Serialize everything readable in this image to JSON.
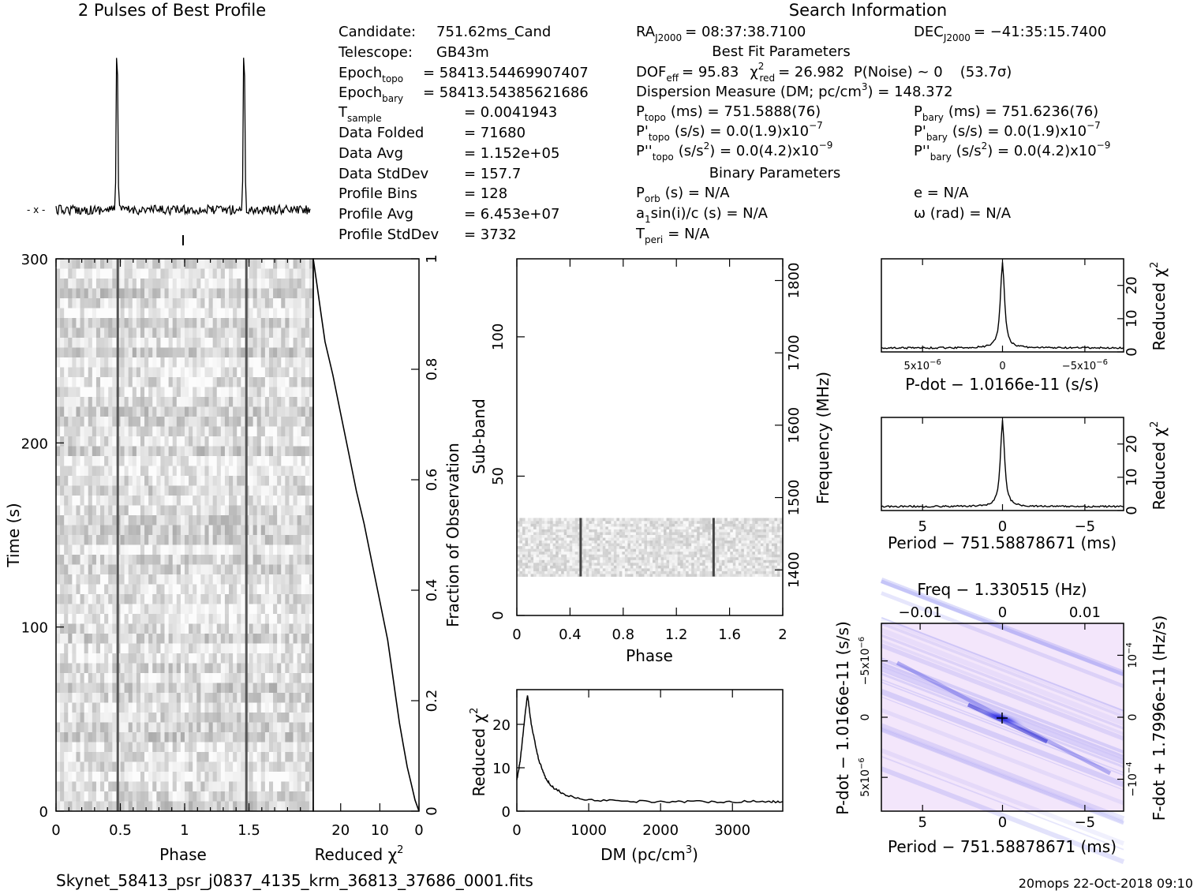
{
  "titles": {
    "profile": "2 Pulses of Best Profile",
    "search": "Search Information"
  },
  "info_left": [
    {
      "label": "Candidate:",
      "value": "751.62ms_Cand"
    },
    {
      "label": "Telescope:",
      "value": "GB43m"
    },
    {
      "label": "Epoch",
      "sub": "topo",
      "value": "= 58413.54469907407"
    },
    {
      "label": "Epoch",
      "sub": "bary",
      "value": "= 58413.54385621686"
    },
    {
      "label": "T",
      "sub": "sample",
      "value": "= 0.0041943"
    },
    {
      "label": "Data Folded",
      "value": "= 71680"
    },
    {
      "label": "Data Avg",
      "value": "= 1.152e+05"
    },
    {
      "label": "Data StdDev",
      "value": "= 157.7"
    },
    {
      "label": "Profile Bins",
      "value": "= 128"
    },
    {
      "label": "Profile Avg",
      "value": "= 6.453e+07"
    },
    {
      "label": "Profile StdDev",
      "value": "= 3732"
    }
  ],
  "info_mid": {
    "ra": "RA",
    "ra_sub": "J2000",
    "ra_val": "= 08:37:38.7100",
    "dec": "DEC",
    "dec_sub": "J2000",
    "dec_val": "= −41:35:15.7400",
    "best_fit": "Best Fit Parameters",
    "dof": "DOF",
    "dof_sub": "eff",
    "dof_val": "= 95.83",
    "chi": "χ",
    "chi_sup": "2",
    "chi_sub": "red",
    "chi_val": "= 26.982",
    "pnoise": "P(Noise) ~ 0",
    "sigma": "(53.7σ)",
    "dm_line": "Dispersion Measure (DM; pc/cm",
    "dm_sup": "3",
    "dm_val": ") = 148.372",
    "ptopo": "P",
    "ptopo_sub": "topo",
    "ptopo_val": "(ms) =  751.5888(76)",
    "pbary": "P",
    "pbary_sub": "bary",
    "pbary_val": "(ms) =  751.6236(76)",
    "pdtopo": "P'",
    "pdtopo_sub": "topo",
    "pdtopo_val": "(s/s) = 0.0(1.9)x10",
    "pdtopo_exp": "−7",
    "pdbary": "P'",
    "pdbary_sub": "bary",
    "pdbary_val": "(s/s) = 0.0(1.9)x10",
    "pdbary_exp": "−7",
    "pddtopo": "P''",
    "pddtopo_sub": "topo",
    "pddtopo_val": "(s/s",
    "pddtopo_val2": ") = 0.0(4.2)x10",
    "pddtopo_exp": "−9",
    "pddbary": "P''",
    "pddbary_sub": "bary",
    "pddbary_val": "(s/s",
    "pddbary_val2": ") = 0.0(4.2)x10",
    "pddbary_exp": "−9",
    "binary": "Binary Parameters",
    "porb": "P",
    "porb_sub": "orb",
    "porb_val": "(s) = N/A",
    "ecc": "e = N/A",
    "a1": "a",
    "a1_sub": "1",
    "a1_val": "sin(i)/c (s) = N/A",
    "omega": "ω (rad) = N/A",
    "tperi": "T",
    "tperi_sub": "peri",
    "tperi_val": "= N/A"
  },
  "footer": {
    "filename": "Skynet_58413_psr_j0837_4135_krm_36813_37686_0001.fits",
    "stamp": "20mops 22-Oct-2018 09:10"
  },
  "chart_data": [
    {
      "type": "line",
      "title": "2 Pulses of Best Profile",
      "xlim": [
        0,
        2
      ],
      "peaks_at_phase": [
        0.48,
        1.48
      ]
    },
    {
      "type": "heatmap",
      "name": "time-phase",
      "xlabel": "Phase",
      "ylabel": "Time (s)",
      "xticks": [
        "0",
        "0.5",
        "1",
        "1.5"
      ],
      "yticks": [
        "0",
        "100",
        "200",
        "300"
      ],
      "xlim": [
        0,
        2
      ],
      "ylim": [
        0,
        300
      ],
      "pulse_phase": [
        0.48,
        1.48
      ]
    },
    {
      "type": "line",
      "name": "reduced-chi2-vs-fraction",
      "xlabel": "Reduced χ",
      "xlabel_sup": "2",
      "ylabel": "Fraction of Observation",
      "xticks": [
        "20",
        "10",
        "0"
      ],
      "yticks": [
        "0",
        "0.2",
        "0.4",
        "0.6",
        "0.8",
        "1"
      ],
      "xlim": [
        27,
        0
      ],
      "ylim": [
        0,
        1
      ],
      "x": [
        0,
        1,
        2,
        3,
        4,
        5,
        6,
        7,
        8,
        10,
        12,
        14,
        16,
        18,
        20,
        22,
        24,
        25,
        26,
        27
      ],
      "y": [
        0,
        0.02,
        0.05,
        0.08,
        0.12,
        0.16,
        0.21,
        0.26,
        0.31,
        0.38,
        0.45,
        0.52,
        0.58,
        0.65,
        0.72,
        0.79,
        0.85,
        0.9,
        0.95,
        1.0
      ]
    },
    {
      "type": "heatmap",
      "name": "subband-phase",
      "xlabel": "Phase",
      "ylabel": "Sub-band",
      "ylabel2": "Frequency (MHz)",
      "xticks": [
        "0",
        "0.4",
        "0.8",
        "1.2",
        "1.6",
        "2"
      ],
      "yticks": [
        "0",
        "50",
        "100"
      ],
      "yticks2": [
        "1400",
        "1500",
        "1600",
        "1700",
        "1800"
      ],
      "xlim": [
        0,
        2
      ],
      "ylim": [
        0,
        128
      ],
      "populated_subbands": [
        14,
        35
      ],
      "pulse_phase": [
        0.48,
        1.48
      ]
    },
    {
      "type": "line",
      "name": "dm-curve",
      "xlabel": "DM (pc/cm",
      "xlabel_sup": "3",
      "ylabel": "Reduced χ",
      "ylabel_sup": "2",
      "xticks": [
        "0",
        "1000",
        "2000",
        "3000"
      ],
      "yticks": [
        "0",
        "10",
        "20"
      ],
      "xlim": [
        0,
        3700
      ],
      "ylim": [
        0,
        28
      ],
      "x": [
        0,
        50,
        100,
        148,
        200,
        300,
        400,
        500,
        700,
        1000,
        1500,
        2000,
        2500,
        3000,
        3500,
        3700
      ],
      "y": [
        7,
        12,
        20,
        26.9,
        20,
        12,
        7.5,
        5.5,
        3.5,
        2.6,
        2.3,
        2.2,
        2.2,
        2.2,
        2.2,
        2.2
      ]
    },
    {
      "type": "line",
      "name": "pdot-curve",
      "xlabel": "P-dot − 1.0166e-11 (s/s)",
      "ylabel": "Reduced χ",
      "ylabel_sup": "2",
      "xticks": [
        "5x10",
        "0",
        "−5x10"
      ],
      "xtick_exp": "−6",
      "yticks": [
        "0",
        "10",
        "20"
      ],
      "ylim": [
        0,
        28
      ],
      "peak": 26.982
    },
    {
      "type": "line",
      "name": "period-curve",
      "xlabel": "Period − 751.58878671 (ms)",
      "ylabel": "Reduced χ",
      "ylabel_sup": "2",
      "xticks": [
        "5",
        "0",
        "−5"
      ],
      "yticks": [
        "0",
        "10",
        "20"
      ],
      "ylim": [
        0,
        28
      ],
      "peak": 26.982
    },
    {
      "type": "heatmap",
      "name": "p-pdot-plane",
      "xlabel": "Period − 751.58878671 (ms)",
      "ylabel": "P-dot − 1.0166e-11 (s/s)",
      "top_label": "Freq − 1.330515 (Hz)",
      "right_label": "F-dot + 1.7996e-11 (Hz/s)",
      "xticks": [
        "5",
        "0",
        "−5"
      ],
      "top_ticks": [
        "−0.01",
        "0",
        "0.01"
      ],
      "yticks": [
        "5x10",
        "0",
        "−5x10"
      ],
      "ytick_exp": "−6",
      "right_ticks": [
        "−10",
        "0",
        "10"
      ],
      "right_tick_exp": "−4"
    }
  ]
}
